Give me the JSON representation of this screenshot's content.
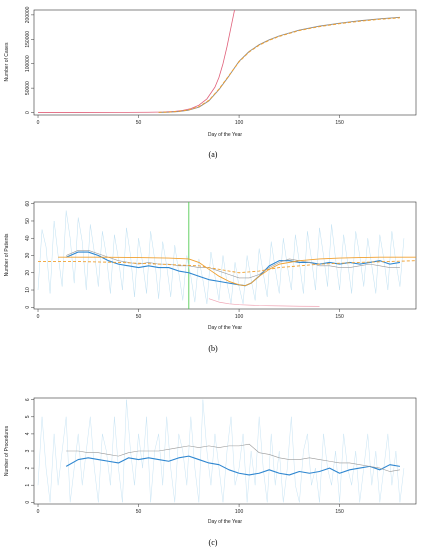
{
  "panels": [
    {
      "caption": "(a)"
    },
    {
      "caption": "(b)"
    },
    {
      "caption": "(c)"
    }
  ],
  "chart_data": [
    {
      "type": "line",
      "xlabel": "Day of the Year",
      "ylabel": "Number of Cases",
      "xlim": [
        -2,
        188
      ],
      "ylim": [
        -5000,
        210000
      ],
      "xticks": [
        0,
        50,
        100,
        150
      ],
      "yticks": [
        0,
        50000,
        100000,
        150000,
        200000
      ],
      "colors": {
        "exponential": "#e0607a",
        "observed": "#8a8a8a",
        "logistic": "#f0a030"
      },
      "series": [
        {
          "key": "exponential",
          "style": "solid",
          "x": [
            0,
            20,
            40,
            55,
            62,
            68,
            72,
            76,
            80,
            84,
            88,
            90,
            92,
            94,
            96,
            98
          ],
          "values": [
            200,
            200,
            300,
            600,
            1200,
            2500,
            4500,
            8000,
            15000,
            28000,
            52000,
            72000,
            100000,
            135000,
            175000,
            215000
          ]
        },
        {
          "key": "observed",
          "style": "solid",
          "x": [
            60,
            65,
            70,
            75,
            80,
            85,
            90,
            95,
            100,
            105,
            110,
            115,
            120,
            130,
            140,
            150,
            160,
            170,
            180
          ],
          "values": [
            300,
            800,
            2000,
            5000,
            11000,
            24000,
            47000,
            75000,
            105000,
            125000,
            139000,
            149000,
            157000,
            169000,
            177000,
            183000,
            188000,
            192000,
            195000
          ]
        },
        {
          "key": "logistic",
          "style": "dashed",
          "x": [
            60,
            65,
            70,
            75,
            80,
            85,
            90,
            95,
            100,
            105,
            110,
            115,
            120,
            130,
            140,
            150,
            160,
            170,
            180
          ],
          "values": [
            400,
            1000,
            2500,
            5500,
            12000,
            25000,
            48000,
            76000,
            104000,
            124000,
            138000,
            148000,
            156000,
            168000,
            176000,
            182000,
            187000,
            191000,
            194000
          ]
        }
      ]
    },
    {
      "type": "line",
      "xlabel": "Day of the Year",
      "ylabel": "Number of Patients",
      "xlim": [
        -2,
        188
      ],
      "ylim": [
        -1,
        61
      ],
      "xticks": [
        0,
        50,
        100,
        150
      ],
      "yticks": [
        0,
        10,
        20,
        30,
        40,
        50,
        60
      ],
      "vline_x": 75,
      "colors": {
        "daily": "#bfe0f2",
        "smooth": "#2e86d0",
        "average": "#999999",
        "fit": "#f0a030",
        "pink": "#f0a5b4",
        "vline": "#55cc55"
      },
      "series": [
        {
          "key": "daily",
          "style": "solid",
          "x": [
            0,
            2,
            4,
            6,
            8,
            10,
            12,
            14,
            16,
            18,
            20,
            22,
            24,
            26,
            28,
            30,
            32,
            34,
            36,
            38,
            40,
            42,
            44,
            46,
            48,
            50,
            52,
            54,
            56,
            58,
            60,
            62,
            64,
            66,
            68,
            70,
            72,
            74,
            76,
            78,
            80,
            82,
            84,
            86,
            88,
            90,
            92,
            94,
            96,
            98,
            100,
            102,
            104,
            106,
            108,
            110,
            112,
            114,
            116,
            118,
            120,
            122,
            124,
            126,
            128,
            130,
            132,
            134,
            136,
            138,
            140,
            142,
            144,
            146,
            148,
            150,
            152,
            154,
            156,
            158,
            160,
            162,
            164,
            166,
            168,
            170,
            172,
            174,
            176,
            178,
            180,
            182
          ],
          "values": [
            10,
            45,
            35,
            8,
            50,
            30,
            12,
            56,
            40,
            14,
            52,
            38,
            10,
            48,
            32,
            12,
            44,
            30,
            8,
            42,
            28,
            10,
            46,
            30,
            6,
            40,
            26,
            8,
            44,
            28,
            5,
            38,
            24,
            6,
            36,
            20,
            4,
            30,
            18,
            3,
            28,
            16,
            2,
            32,
            18,
            4,
            30,
            14,
            2,
            26,
            12,
            2,
            30,
            16,
            4,
            34,
            20,
            6,
            38,
            22,
            8,
            40,
            24,
            10,
            42,
            26,
            8,
            44,
            28,
            10,
            46,
            30,
            12,
            48,
            28,
            10,
            42,
            26,
            8,
            44,
            30,
            12,
            40,
            24,
            8,
            42,
            28,
            10,
            44,
            26,
            12,
            40
          ]
        },
        {
          "key": "smooth",
          "style": "solid",
          "x": [
            14,
            20,
            25,
            30,
            35,
            40,
            45,
            50,
            55,
            60,
            65,
            70,
            75,
            80,
            85,
            90,
            95,
            100,
            103,
            106,
            110,
            115,
            120,
            125,
            130,
            135,
            140,
            145,
            150,
            155,
            160,
            165,
            170,
            175,
            180
          ],
          "values": [
            29,
            32,
            32,
            30,
            27,
            25,
            24,
            23,
            24,
            23,
            23,
            21,
            20,
            18,
            16,
            15,
            14,
            13,
            12.5,
            14,
            18,
            24,
            27,
            27,
            26,
            26,
            25,
            26,
            25,
            26,
            25,
            26,
            27,
            25,
            26
          ]
        },
        {
          "key": "average",
          "style": "solid",
          "x": [
            14,
            20,
            25,
            30,
            35,
            40,
            45,
            50,
            55,
            60,
            65,
            70,
            75,
            80,
            85,
            90,
            95,
            100,
            105,
            110,
            115,
            120,
            125,
            130,
            135,
            140,
            145,
            150,
            155,
            160,
            165,
            170,
            175,
            180
          ],
          "values": [
            30,
            33,
            33,
            31,
            29,
            27,
            26,
            25,
            26,
            25,
            25,
            24,
            24,
            23,
            23,
            21,
            19,
            17,
            17,
            19,
            23,
            26,
            28,
            27,
            26,
            24,
            24,
            23,
            23,
            24,
            25,
            24,
            23,
            23
          ]
        },
        {
          "key": "fit",
          "style": "solid",
          "x": [
            10,
            30,
            50,
            65,
            75,
            80,
            85,
            90,
            95,
            100,
            103,
            106,
            110,
            115,
            120,
            130,
            140,
            150,
            160,
            170,
            180,
            188
          ],
          "values": [
            29,
            29,
            28.8,
            28.5,
            28,
            26,
            22,
            18,
            15,
            13,
            12.5,
            14,
            18,
            22,
            25,
            27,
            28,
            28.5,
            28.8,
            29,
            29,
            29
          ]
        },
        {
          "key": "fit",
          "style": "dashed",
          "x": [
            0,
            20,
            40,
            60,
            80,
            90,
            100,
            110,
            120,
            140,
            160,
            188
          ],
          "values": [
            26.5,
            26.5,
            26,
            25,
            24,
            22,
            20,
            21,
            23,
            25,
            26,
            27
          ]
        },
        {
          "key": "pink",
          "style": "solid",
          "x": [
            85,
            90,
            95,
            100,
            110,
            120,
            130,
            140
          ],
          "values": [
            5,
            3,
            2,
            1.5,
            1,
            0.8,
            0.6,
            0.5
          ]
        }
      ]
    },
    {
      "type": "line",
      "xlabel": "Day of the Year",
      "ylabel": "Number of Procedures",
      "xlim": [
        -2,
        188
      ],
      "ylim": [
        -0.1,
        6.1
      ],
      "xticks": [
        0,
        50,
        100,
        150
      ],
      "yticks": [
        0,
        1,
        2,
        3,
        4,
        5,
        6
      ],
      "colors": {
        "daily": "#c8e4f4",
        "smooth": "#2e86d0",
        "average": "#999999"
      },
      "series": [
        {
          "key": "daily",
          "style": "solid",
          "x": [
            0,
            2,
            4,
            6,
            8,
            10,
            12,
            14,
            16,
            18,
            20,
            22,
            24,
            26,
            28,
            30,
            32,
            34,
            36,
            38,
            40,
            42,
            44,
            46,
            48,
            50,
            52,
            54,
            56,
            58,
            60,
            62,
            64,
            66,
            68,
            70,
            72,
            74,
            76,
            78,
            80,
            82,
            84,
            86,
            88,
            90,
            92,
            94,
            96,
            98,
            100,
            102,
            104,
            106,
            108,
            110,
            112,
            114,
            116,
            118,
            120,
            122,
            124,
            126,
            128,
            130,
            132,
            134,
            136,
            138,
            140,
            142,
            144,
            146,
            148,
            150,
            152,
            154,
            156,
            158,
            160,
            162,
            164,
            166,
            168,
            170,
            172,
            174,
            176,
            178,
            180,
            182
          ],
          "values": [
            1,
            5,
            2,
            0,
            4,
            1,
            3,
            5,
            0,
            2,
            4,
            1,
            3,
            5,
            2,
            0,
            4,
            3,
            1,
            5,
            2,
            0,
            6,
            3,
            1,
            4,
            2,
            5,
            0,
            3,
            4,
            1,
            5,
            2,
            0,
            4,
            3,
            1,
            5,
            2,
            0,
            6,
            3,
            1,
            4,
            2,
            0,
            3,
            5,
            1,
            2,
            4,
            0,
            3,
            1,
            5,
            2,
            0,
            4,
            1,
            3,
            0,
            2,
            5,
            1,
            0,
            3,
            4,
            1,
            2,
            0,
            4,
            2,
            1,
            3,
            0,
            4,
            2,
            1,
            3,
            0,
            2,
            4,
            1,
            3,
            0,
            2,
            4,
            1,
            3,
            0,
            2
          ]
        },
        {
          "key": "smooth",
          "style": "solid",
          "x": [
            14,
            20,
            25,
            30,
            35,
            40,
            45,
            50,
            55,
            60,
            65,
            70,
            75,
            80,
            85,
            90,
            95,
            100,
            105,
            110,
            115,
            120,
            125,
            130,
            135,
            140,
            145,
            150,
            155,
            160,
            165,
            170,
            175,
            180
          ],
          "values": [
            2.1,
            2.5,
            2.6,
            2.5,
            2.4,
            2.3,
            2.6,
            2.5,
            2.6,
            2.5,
            2.4,
            2.6,
            2.7,
            2.5,
            2.3,
            2.2,
            1.9,
            1.7,
            1.6,
            1.7,
            1.9,
            1.7,
            1.6,
            1.8,
            1.7,
            1.8,
            2.0,
            1.7,
            1.9,
            2.0,
            2.1,
            1.9,
            2.2,
            2.1
          ]
        },
        {
          "key": "average",
          "style": "solid",
          "x": [
            14,
            20,
            25,
            30,
            35,
            40,
            45,
            50,
            55,
            60,
            65,
            70,
            75,
            80,
            85,
            90,
            95,
            100,
            105,
            110,
            115,
            120,
            125,
            130,
            135,
            140,
            145,
            150,
            155,
            160,
            165,
            170,
            175,
            180
          ],
          "values": [
            3.0,
            3.0,
            2.9,
            2.9,
            2.8,
            2.7,
            2.9,
            3.0,
            3.0,
            3.0,
            3.1,
            3.2,
            3.3,
            3.2,
            3.3,
            3.2,
            3.3,
            3.3,
            3.4,
            2.9,
            2.8,
            2.6,
            2.5,
            2.5,
            2.6,
            2.5,
            2.4,
            2.3,
            2.3,
            2.2,
            2.1,
            2.0,
            1.8,
            1.9
          ]
        }
      ]
    }
  ]
}
